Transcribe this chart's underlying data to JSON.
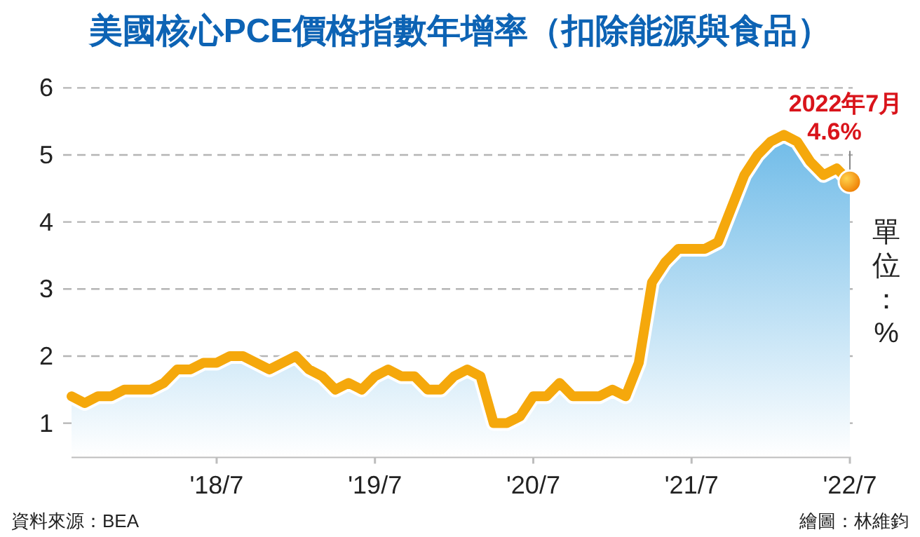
{
  "chart_data": {
    "type": "area",
    "title": "美國核心PCE價格指數年增率（扣除能源與食品）",
    "ylabel": "單位：%",
    "annotations": [
      {
        "text": "2022年7月 4.6%",
        "x": "2022-07",
        "y": 4.6
      },
      "資料來源：BEA",
      "繪圖：林維鈞"
    ],
    "x": [
      "2017-08",
      "2017-09",
      "2017-10",
      "2017-11",
      "2017-12",
      "2018-02",
      "2018-03",
      "2018-04",
      "2018-05",
      "2018-06",
      "2018-07",
      "2018-08",
      "2018-09",
      "2018-10",
      "2018-11",
      "2018-12",
      "2019-01",
      "2019-02",
      "2019-03",
      "2019-04",
      "2019-05",
      "2019-06",
      "2019-07",
      "2019-08",
      "2019-09",
      "2019-10",
      "2019-11",
      "2019-12",
      "2020-01",
      "2020-02",
      "2020-03",
      "2020-04",
      "2020-05",
      "2020-06",
      "2020-07",
      "2020-08",
      "2020-09",
      "2020-10",
      "2020-12",
      "2021-01",
      "2021-02",
      "2021-03",
      "2021-04",
      "2021-05",
      "2021-06",
      "2021-08",
      "2021-09",
      "2021-10",
      "2021-11",
      "2021-12",
      "2022-01",
      "2022-02",
      "2022-03",
      "2022-04",
      "2022-05",
      "2022-06",
      "2022-07"
    ],
    "series": [
      {
        "color": "#f5a80c",
        "values": [
          1.4,
          1.3,
          1.4,
          1.4,
          1.5,
          1.5,
          1.6,
          1.8,
          1.8,
          1.9,
          1.9,
          2.0,
          2.0,
          1.9,
          1.8,
          1.9,
          2.0,
          1.8,
          1.7,
          1.5,
          1.6,
          1.5,
          1.7,
          1.8,
          1.7,
          1.7,
          1.5,
          1.5,
          1.7,
          1.8,
          1.7,
          1.0,
          1.0,
          1.1,
          1.4,
          1.4,
          1.6,
          1.4,
          1.4,
          1.5,
          1.4,
          1.9,
          3.1,
          3.4,
          3.6,
          3.6,
          3.7,
          4.2,
          4.7,
          5.0,
          5.2,
          5.3,
          5.2,
          4.9,
          4.7,
          4.8,
          4.6
        ]
      }
    ],
    "xlim": [
      "2017-08",
      "2022-07"
    ],
    "xticks": [
      {
        "value": "2018-07",
        "label": "'18/7"
      },
      {
        "value": "2019-07",
        "label": "'19/7"
      },
      {
        "value": "2020-07",
        "label": "'20/7"
      },
      {
        "value": "2021-07",
        "label": "'21/7"
      },
      {
        "value": "2022-07",
        "label": "'22/7"
      }
    ],
    "ylim": [
      0.5,
      6
    ],
    "yticks": [
      1,
      2,
      3,
      4,
      5,
      6
    ],
    "grid": "y",
    "line_style": "solid"
  }
}
